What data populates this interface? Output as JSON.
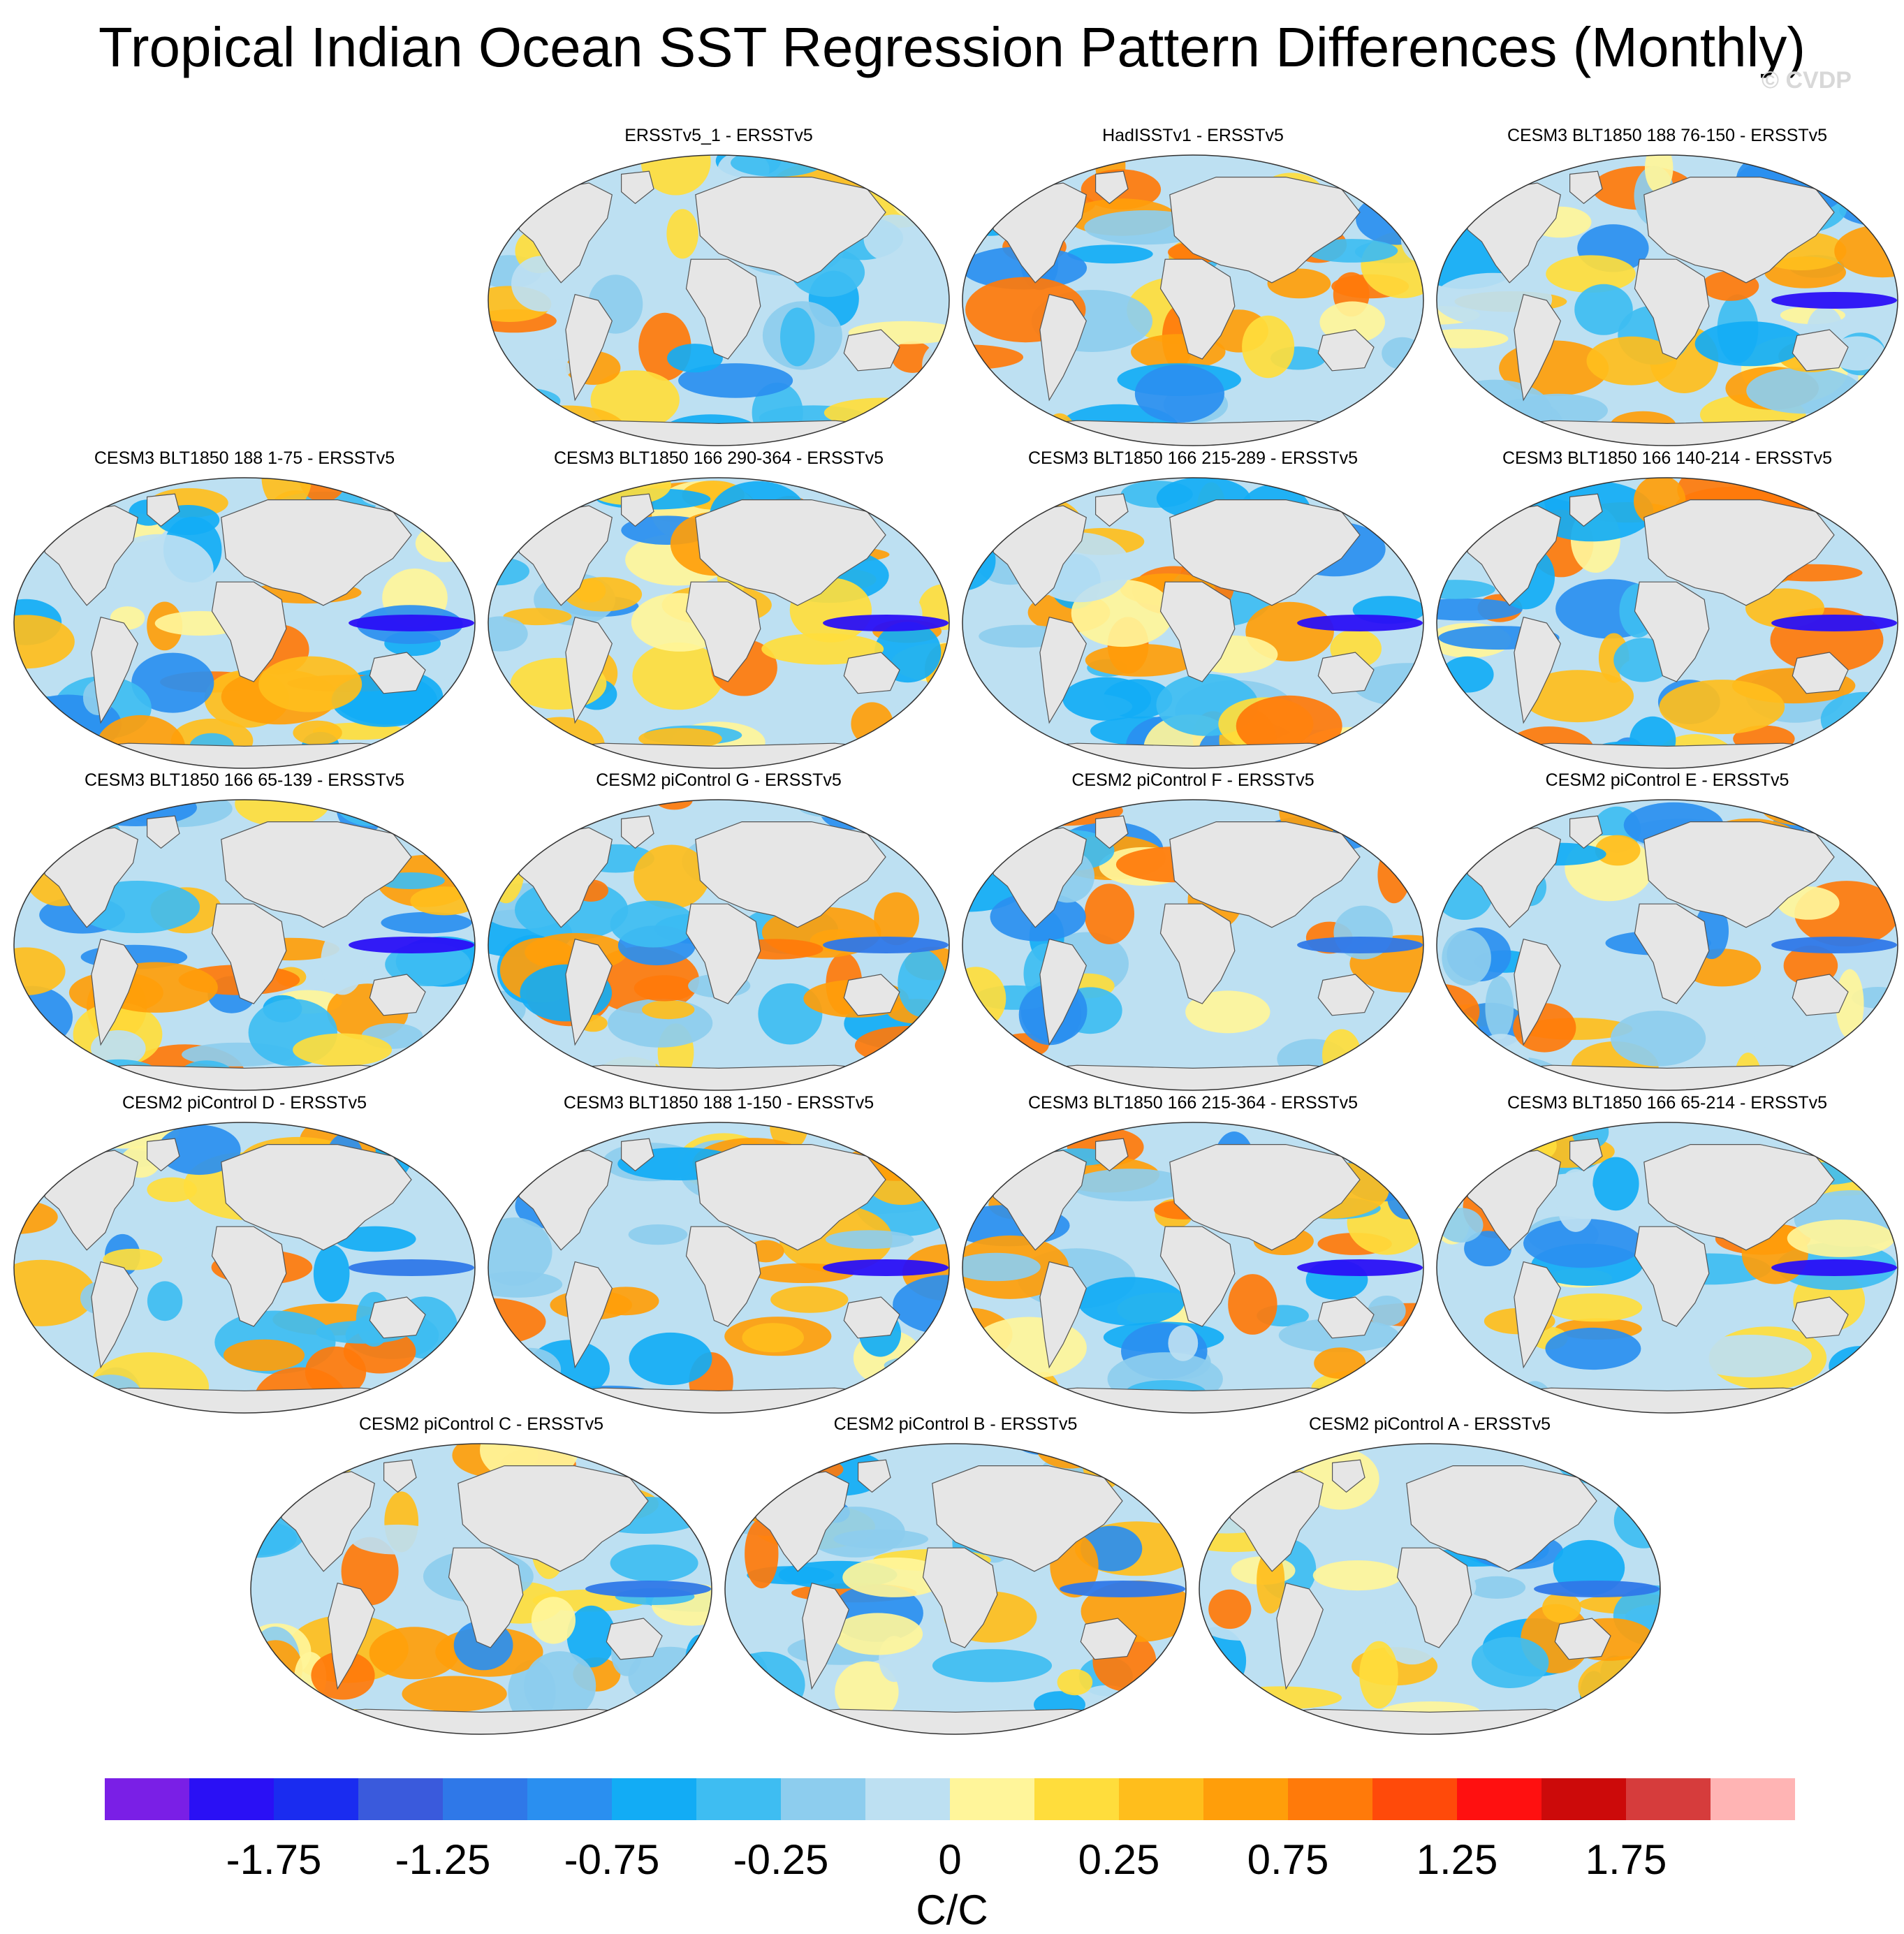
{
  "title": "Tropical Indian Ocean SST Regression Pattern Differences (Monthly)",
  "watermark": "© CVDP",
  "chart_data": {
    "type": "heatmap",
    "title": "Tropical Indian Ocean SST Regression Pattern Differences (Monthly)",
    "projection": "global map (Robinson-like)",
    "units": "C/C",
    "panels": [
      {
        "label": "ERSSTv5_1 - ERSSTv5"
      },
      {
        "label": "HadISSTv1 - ERSSTv5"
      },
      {
        "label": "CESM3 BLT1850 188 76-150 - ERSSTv5"
      },
      {
        "label": "CESM3 BLT1850 188 1-75 - ERSSTv5"
      },
      {
        "label": "CESM3 BLT1850 166 290-364 - ERSSTv5"
      },
      {
        "label": "CESM3 BLT1850 166 215-289 - ERSSTv5"
      },
      {
        "label": "CESM3 BLT1850 166 140-214 - ERSSTv5"
      },
      {
        "label": "CESM3 BLT1850 166 65-139 - ERSSTv5"
      },
      {
        "label": "CESM2 piControl G - ERSSTv5"
      },
      {
        "label": "CESM2 piControl F - ERSSTv5"
      },
      {
        "label": "CESM2 piControl E - ERSSTv5"
      },
      {
        "label": "CESM2 piControl D - ERSSTv5"
      },
      {
        "label": "CESM3 BLT1850 188 1-150 - ERSSTv5"
      },
      {
        "label": "CESM3 BLT1850 166 215-364 - ERSSTv5"
      },
      {
        "label": "CESM3 BLT1850 166 65-214 - ERSSTv5"
      },
      {
        "label": "CESM2 piControl C - ERSSTv5"
      },
      {
        "label": "CESM2 piControl B - ERSSTv5"
      },
      {
        "label": "CESM2 piControl A - ERSSTv5"
      }
    ],
    "colorbar": {
      "units": "C/C",
      "levels": [
        -2.0,
        -1.75,
        -1.5,
        -1.25,
        -1.0,
        -0.75,
        -0.5,
        -0.25,
        -0.1,
        0,
        0.1,
        0.25,
        0.5,
        0.75,
        1.0,
        1.25,
        1.5,
        1.75,
        2.0
      ],
      "colors": [
        "#7a1fe6",
        "#2a10f5",
        "#1a2cf0",
        "#3a5adc",
        "#2f78e8",
        "#2a8ff0",
        "#12acf5",
        "#3ebdf2",
        "#8dcdee",
        "#bde0f2",
        "#fff59a",
        "#ffdd3c",
        "#ffbe1c",
        "#ff9e0a",
        "#ff7a0a",
        "#ff4a0a",
        "#ff1010",
        "#cc0a0a",
        "#d63c3c",
        "#ffb4b4"
      ],
      "tick_labels": [
        "-1.75",
        "-1.25",
        "-0.75",
        "-0.25",
        "0",
        "0.25",
        "0.75",
        "1.25",
        "1.75"
      ]
    }
  }
}
